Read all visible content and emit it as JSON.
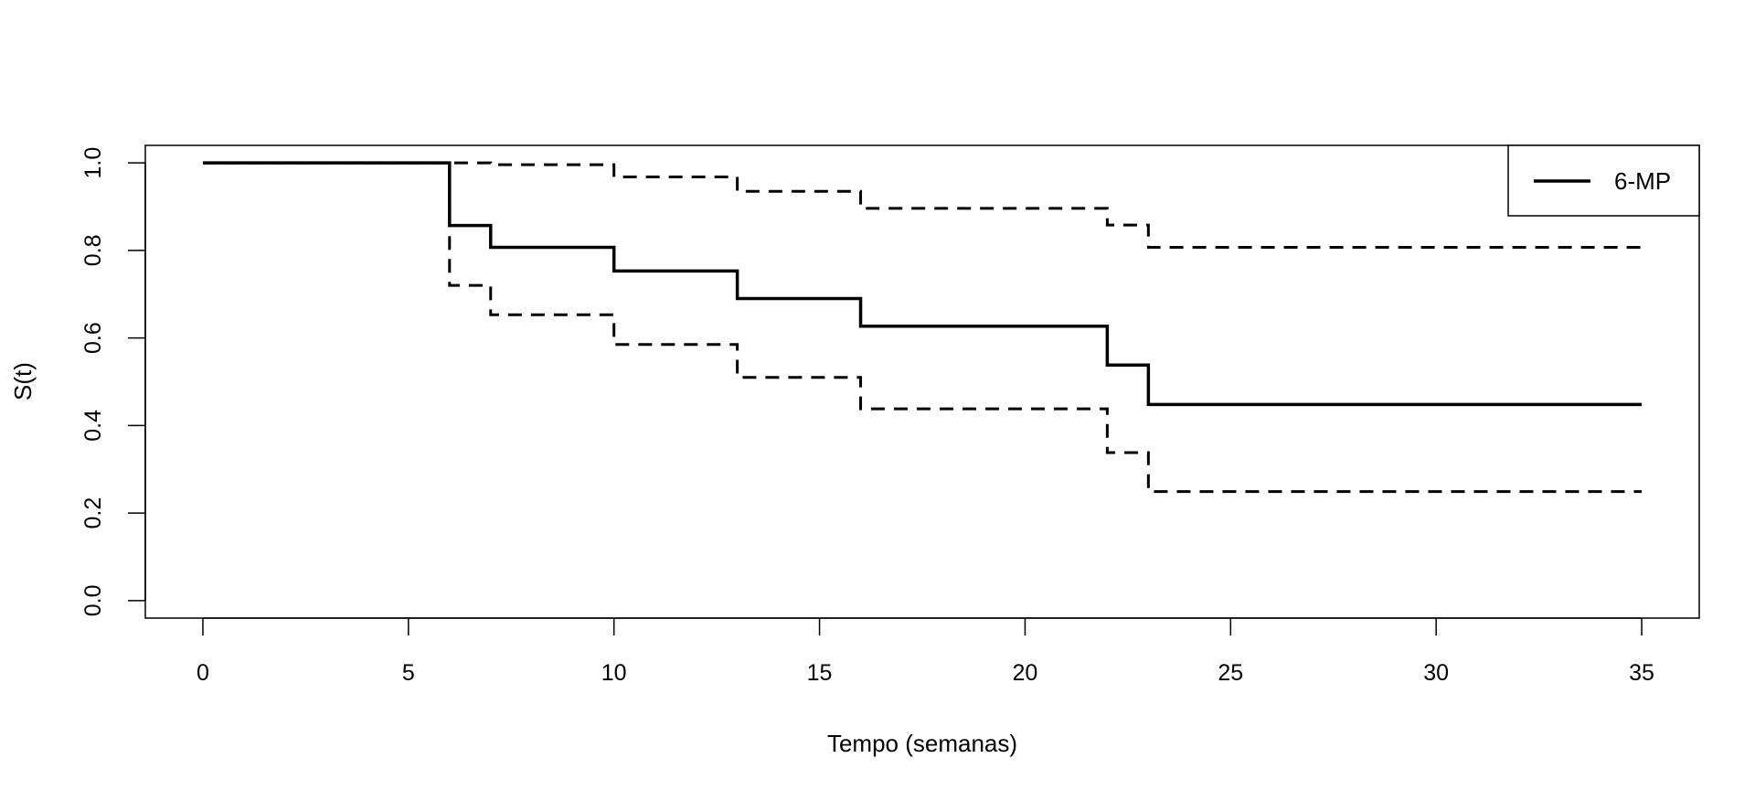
{
  "chart_data": {
    "type": "line",
    "xlabel": "Tempo (semanas)",
    "ylabel": "S(t)",
    "xlim": [
      -1.4,
      36.4
    ],
    "ylim": [
      -0.04,
      1.04
    ],
    "xticks": [
      0,
      5,
      10,
      15,
      20,
      25,
      30,
      35
    ],
    "yticks": [
      0.0,
      0.2,
      0.4,
      0.6,
      0.8,
      1.0
    ],
    "ytick_labels": [
      "0.0",
      "0.2",
      "0.4",
      "0.6",
      "0.8",
      "1.0"
    ],
    "grid": false,
    "legend": {
      "position": "top-right",
      "entries": [
        "6-MP"
      ]
    },
    "series": [
      {
        "name": "6-MP",
        "style": "solid",
        "step": true,
        "x": [
          0,
          6,
          7,
          10,
          13,
          16,
          22,
          23,
          35
        ],
        "y": [
          1.0,
          0.857,
          0.807,
          0.753,
          0.69,
          0.627,
          0.538,
          0.448,
          0.448
        ]
      },
      {
        "style": "dashed",
        "step": true,
        "x": [
          0,
          6,
          7,
          10,
          13,
          16,
          22,
          23,
          35
        ],
        "y": [
          1.0,
          1.0,
          0.996,
          0.968,
          0.935,
          0.896,
          0.858,
          0.807,
          0.807
        ]
      },
      {
        "style": "dashed",
        "step": true,
        "x": [
          0,
          6,
          7,
          10,
          13,
          16,
          22,
          23,
          35
        ],
        "y": [
          1.0,
          0.72,
          0.653,
          0.585,
          0.51,
          0.438,
          0.338,
          0.249,
          0.249
        ]
      }
    ]
  }
}
